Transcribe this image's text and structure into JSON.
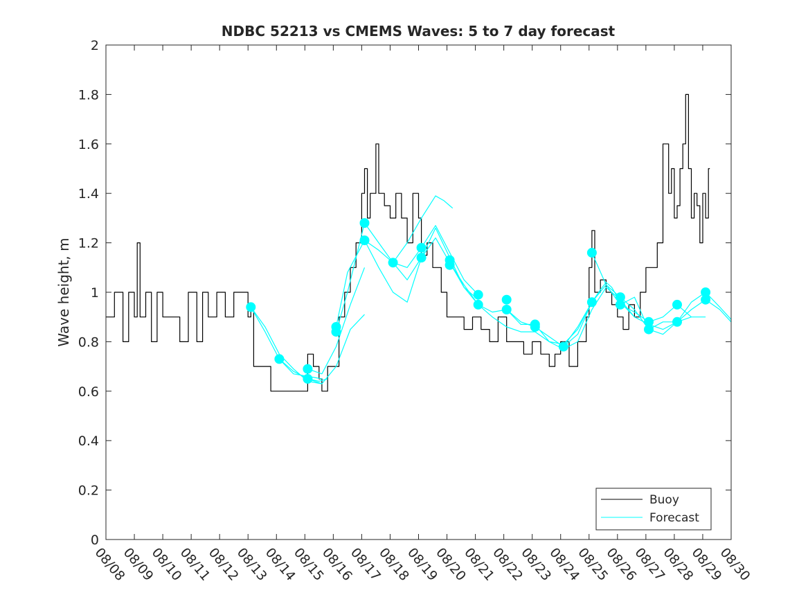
{
  "chart_data": {
    "type": "line",
    "title": "NDBC 52213 vs CMEMS Waves: 5 to 7 day forecast",
    "xlabel": "",
    "ylabel": "Wave height, m",
    "xlim": [
      0,
      22
    ],
    "ylim": [
      0,
      2
    ],
    "x_ticks": [
      0,
      1,
      2,
      3,
      4,
      5,
      6,
      7,
      8,
      9,
      10,
      11,
      12,
      13,
      14,
      15,
      16,
      17,
      18,
      19,
      20,
      21,
      22
    ],
    "x_tick_labels": [
      "08/08",
      "08/09",
      "08/10",
      "08/11",
      "08/12",
      "08/13",
      "08/14",
      "08/15",
      "08/16",
      "08/17",
      "08/18",
      "08/19",
      "08/20",
      "08/21",
      "08/22",
      "08/23",
      "08/24",
      "08/25",
      "08/26",
      "08/27",
      "08/28",
      "08/29",
      "08/30"
    ],
    "y_ticks": [
      0,
      0.2,
      0.4,
      0.6,
      0.8,
      1,
      1.2,
      1.4,
      1.6,
      1.8,
      2
    ],
    "y_tick_labels": [
      "0",
      "0.2",
      "0.4",
      "0.6",
      "0.8",
      "1",
      "1.2",
      "1.4",
      "1.6",
      "1.8",
      "2"
    ],
    "legend": {
      "position": "bottom-right",
      "entries": [
        {
          "label": "Buoy",
          "color": "#000000"
        },
        {
          "label": "Forecast",
          "color": "#00ffff"
        }
      ]
    },
    "series": [
      {
        "name": "Buoy",
        "color": "#000000",
        "x": [
          0.0,
          0.3,
          0.6,
          0.8,
          1.0,
          1.1,
          1.2,
          1.4,
          1.6,
          1.8,
          2.0,
          2.3,
          2.6,
          2.9,
          3.2,
          3.4,
          3.6,
          3.9,
          4.2,
          4.5,
          4.8,
          5.0,
          5.1,
          5.2,
          5.4,
          5.6,
          5.8,
          6.0,
          6.3,
          6.6,
          6.9,
          7.1,
          7.3,
          7.5,
          7.6,
          7.8,
          8.0,
          8.2,
          8.4,
          8.6,
          8.8,
          9.0,
          9.1,
          9.2,
          9.3,
          9.5,
          9.6,
          9.8,
          10.0,
          10.2,
          10.4,
          10.6,
          10.8,
          11.0,
          11.1,
          11.3,
          11.5,
          11.8,
          12.0,
          12.3,
          12.6,
          12.9,
          13.2,
          13.5,
          13.8,
          14.1,
          14.4,
          14.7,
          15.0,
          15.3,
          15.6,
          15.8,
          16.0,
          16.3,
          16.6,
          16.9,
          17.0,
          17.1,
          17.2,
          17.4,
          17.6,
          17.8,
          18.0,
          18.2,
          18.4,
          18.6,
          18.8,
          19.0,
          19.2,
          19.4,
          19.6,
          19.8,
          19.9,
          20.0,
          20.1,
          20.2,
          20.3,
          20.4,
          20.5,
          20.6,
          20.7,
          20.8,
          20.9,
          21.0,
          21.1,
          21.2
        ],
        "y": [
          0.9,
          1.0,
          0.8,
          1.0,
          0.9,
          1.2,
          0.9,
          1.0,
          0.8,
          1.0,
          0.9,
          0.9,
          0.8,
          1.0,
          0.8,
          1.0,
          0.9,
          1.0,
          0.9,
          1.0,
          1.0,
          0.9,
          0.95,
          0.7,
          0.7,
          0.7,
          0.6,
          0.6,
          0.6,
          0.6,
          0.6,
          0.75,
          0.7,
          0.65,
          0.6,
          0.7,
          0.7,
          0.9,
          1.0,
          1.1,
          1.2,
          1.4,
          1.5,
          1.3,
          1.4,
          1.6,
          1.4,
          1.35,
          1.3,
          1.4,
          1.3,
          1.2,
          1.4,
          1.3,
          1.15,
          1.2,
          1.1,
          1.0,
          0.9,
          0.9,
          0.85,
          0.9,
          0.85,
          0.8,
          0.9,
          0.8,
          0.8,
          0.75,
          0.8,
          0.75,
          0.7,
          0.75,
          0.8,
          0.7,
          0.8,
          0.9,
          1.1,
          1.25,
          1.0,
          1.05,
          1.0,
          0.95,
          0.9,
          0.85,
          0.95,
          0.9,
          1.0,
          1.1,
          1.1,
          1.2,
          1.6,
          1.4,
          1.5,
          1.3,
          1.35,
          1.5,
          1.6,
          1.8,
          1.5,
          1.3,
          1.4,
          1.35,
          1.2,
          1.4,
          1.3,
          1.5
        ]
      },
      {
        "name": "Forecast",
        "color": "#00ffff",
        "x": [
          5.1,
          5.6,
          6.1,
          6.6,
          7.1,
          7.6
        ],
        "y": [
          0.94,
          0.86,
          0.75,
          0.69,
          0.64,
          0.63
        ]
      },
      {
        "name": "Forecast",
        "color": "#00ffff",
        "x": [
          5.1,
          5.6,
          6.1,
          6.6,
          7.1,
          7.6
        ],
        "y": [
          0.94,
          0.84,
          0.73,
          0.67,
          0.66,
          0.65
        ]
      },
      {
        "name": "Forecast",
        "color": "#00ffff",
        "x": [
          6.1,
          6.6,
          7.1,
          7.5,
          7.8
        ],
        "y": [
          0.73,
          0.68,
          0.65,
          0.64,
          0.65
        ]
      },
      {
        "name": "Forecast",
        "color": "#00ffff",
        "x": [
          7.1,
          7.6,
          8.1,
          8.6,
          9.1
        ],
        "y": [
          0.69,
          0.67,
          0.78,
          0.95,
          1.1
        ]
      },
      {
        "name": "Forecast",
        "color": "#00ffff",
        "x": [
          7.1,
          7.6,
          8.1,
          8.6,
          9.1
        ],
        "y": [
          0.65,
          0.63,
          0.7,
          0.85,
          0.91
        ]
      },
      {
        "name": "Forecast",
        "color": "#00ffff",
        "x": [
          8.1,
          8.5,
          9.1,
          9.6,
          10.1,
          10.6,
          11.1,
          11.6,
          12.1,
          12.6,
          13.1
        ],
        "y": [
          0.86,
          1.08,
          1.21,
          1.17,
          1.12,
          1.1,
          1.18,
          1.27,
          1.16,
          1.05,
          0.99
        ]
      },
      {
        "name": "Forecast",
        "color": "#00ffff",
        "x": [
          8.1,
          8.5,
          9.1,
          9.6,
          10.1,
          10.6,
          11.1,
          11.6,
          12.1,
          12.6,
          13.1
        ],
        "y": [
          0.84,
          1.0,
          1.28,
          1.2,
          1.12,
          1.05,
          1.14,
          1.22,
          1.12,
          1.02,
          0.95
        ]
      },
      {
        "name": "Forecast",
        "color": "#00ffff",
        "x": [
          9.1,
          9.6,
          10.1,
          10.6,
          11.1,
          11.6,
          12.1,
          12.6,
          13.1
        ],
        "y": [
          1.21,
          1.1,
          1.0,
          0.96,
          1.14,
          1.26,
          1.14,
          1.02,
          0.97
        ]
      },
      {
        "name": "Forecast",
        "color": "#00ffff",
        "x": [
          10.1,
          10.6,
          11.1,
          11.6,
          11.9,
          12.1,
          12.2
        ],
        "y": [
          1.12,
          1.2,
          1.3,
          1.39,
          1.37,
          1.35,
          1.34
        ]
      },
      {
        "name": "Forecast",
        "color": "#00ffff",
        "x": [
          12.1,
          12.6,
          13.1,
          13.6,
          14.1,
          14.6,
          15.1,
          15.6,
          16.1,
          16.6,
          17.1
        ],
        "y": [
          1.12,
          1.03,
          0.95,
          0.92,
          0.93,
          0.88,
          0.86,
          0.82,
          0.78,
          0.83,
          0.96
        ]
      },
      {
        "name": "Forecast",
        "color": "#00ffff",
        "x": [
          13.1,
          13.6,
          14.1,
          14.6,
          15.1,
          15.6,
          16.1,
          16.6,
          17.1
        ],
        "y": [
          0.95,
          0.9,
          0.86,
          0.84,
          0.84,
          0.8,
          0.79,
          0.85,
          0.96
        ]
      },
      {
        "name": "Forecast",
        "color": "#00ffff",
        "x": [
          14.1,
          14.6,
          15.1,
          15.6,
          16.1,
          16.6,
          17.1,
          17.6,
          18.1,
          18.6
        ],
        "y": [
          0.93,
          0.87,
          0.87,
          0.8,
          0.77,
          0.8,
          0.93,
          1.02,
          0.97,
          0.9
        ]
      },
      {
        "name": "Forecast",
        "color": "#00ffff",
        "x": [
          16.1,
          16.6,
          17.1,
          17.4,
          17.6,
          17.8,
          18.1,
          18.6,
          19.1,
          19.6,
          20.1,
          20.6,
          21.1,
          21.6,
          22.0
        ],
        "y": [
          0.78,
          0.86,
          0.96,
          1.01,
          1.04,
          1.02,
          0.96,
          0.9,
          0.87,
          0.85,
          0.88,
          0.96,
          1.0,
          0.94,
          0.89
        ]
      },
      {
        "name": "Forecast",
        "color": "#00ffff",
        "x": [
          17.1,
          17.6,
          18.1,
          18.6,
          19.1,
          19.6,
          20.1,
          20.6,
          21.1,
          21.6,
          22.0
        ],
        "y": [
          1.16,
          1.03,
          0.98,
          0.93,
          0.85,
          0.83,
          0.88,
          0.93,
          0.97,
          0.93,
          0.88
        ]
      },
      {
        "name": "Forecast",
        "color": "#00ffff",
        "x": [
          17.1,
          17.6,
          18.1,
          18.6,
          19.1,
          19.6,
          20.1,
          20.6
        ],
        "y": [
          0.96,
          1.03,
          0.95,
          0.92,
          0.88,
          0.9,
          0.95,
          0.9
        ]
      },
      {
        "name": "Forecast",
        "color": "#00ffff",
        "x": [
          18.1,
          18.6,
          19.1,
          19.6,
          20.1,
          20.6,
          21.1
        ],
        "y": [
          0.95,
          0.98,
          0.85,
          0.88,
          0.88,
          0.9,
          0.9
        ]
      }
    ],
    "forecast_markers": {
      "color": "#00ffff",
      "x": [
        5.1,
        6.1,
        7.1,
        7.1,
        8.1,
        8.1,
        9.1,
        9.1,
        10.1,
        11.1,
        11.1,
        12.1,
        12.1,
        13.1,
        13.1,
        14.1,
        14.1,
        15.1,
        15.1,
        16.1,
        17.1,
        17.1,
        18.1,
        18.1,
        19.1,
        19.1,
        20.1,
        20.1,
        21.1,
        21.1
      ],
      "y": [
        0.94,
        0.73,
        0.69,
        0.65,
        0.86,
        0.84,
        1.28,
        1.21,
        1.12,
        1.18,
        1.14,
        1.13,
        1.11,
        0.99,
        0.95,
        0.97,
        0.93,
        0.87,
        0.86,
        0.78,
        1.16,
        0.96,
        0.98,
        0.95,
        0.88,
        0.85,
        0.95,
        0.88,
        1.0,
        0.97
      ]
    }
  }
}
